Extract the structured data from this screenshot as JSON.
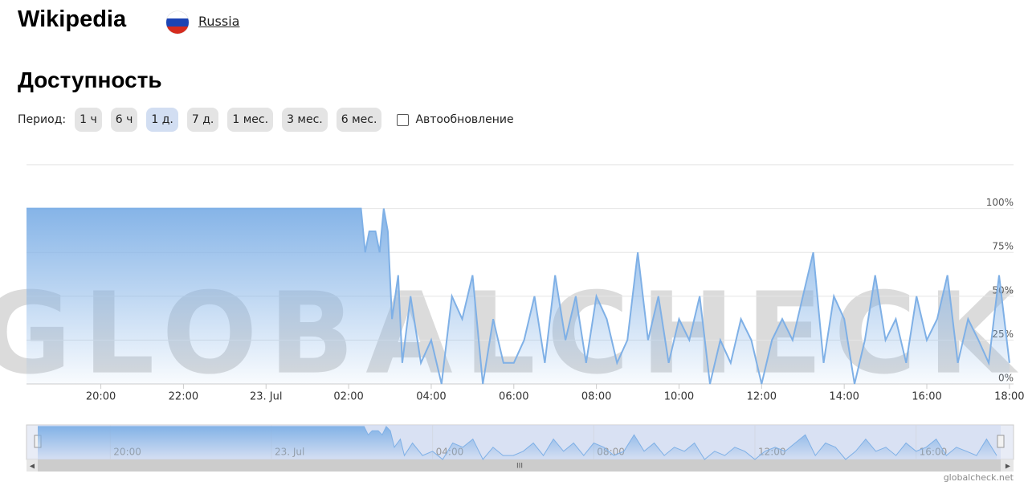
{
  "header": {
    "title": "Wikipedia",
    "country": "Russia"
  },
  "section_title": "Доступность",
  "period": {
    "label": "Период:",
    "options": [
      "1 ч",
      "6 ч",
      "1 д.",
      "7 д.",
      "1 мес.",
      "3 мес.",
      "6 мес."
    ],
    "active": 2
  },
  "auto_update": "Автообновление",
  "watermark": "GLOBALCHECK",
  "credit": "globalcheck.net",
  "chart_data": {
    "type": "area",
    "color": "#7fb0e6",
    "x": [
      18.2,
      26.3,
      26.4,
      26.5,
      26.65,
      26.75,
      26.85,
      26.95,
      27.05,
      27.2,
      27.3,
      27.5,
      27.75,
      28,
      28.25,
      28.5,
      28.75,
      29,
      29.25,
      29.5,
      29.75,
      30,
      30.25,
      30.5,
      30.75,
      31,
      31.25,
      31.5,
      31.75,
      32,
      32.25,
      32.5,
      32.75,
      33,
      33.25,
      33.5,
      33.75,
      34,
      34.25,
      34.5,
      34.75,
      35,
      35.25,
      35.5,
      35.75,
      36,
      36.25,
      36.5,
      36.75,
      37,
      37.25,
      37.5,
      37.75,
      38,
      38.25,
      38.5,
      38.75,
      39,
      39.25,
      39.5,
      39.75,
      40,
      40.25,
      40.5,
      40.75,
      41,
      41.25,
      41.5,
      41.75,
      42
    ],
    "values": [
      100,
      100,
      75,
      87,
      87,
      75,
      100,
      87,
      37,
      62,
      12,
      50,
      12,
      25,
      0,
      50,
      37,
      62,
      0,
      37,
      12,
      12,
      25,
      50,
      12,
      62,
      25,
      50,
      12,
      50,
      37,
      12,
      25,
      75,
      25,
      50,
      12,
      37,
      25,
      50,
      0,
      25,
      12,
      37,
      25,
      0,
      25,
      37,
      25,
      50,
      75,
      12,
      50,
      37,
      0,
      25,
      62,
      25,
      37,
      12,
      50,
      25,
      37,
      62,
      12,
      37,
      25,
      12,
      62,
      12
    ],
    "xlim": [
      18.2,
      42.1
    ],
    "xticks": [
      {
        "value": 20,
        "label": "20:00"
      },
      {
        "value": 22,
        "label": "22:00"
      },
      {
        "value": 24,
        "label": "23. Jul"
      },
      {
        "value": 26,
        "label": "02:00"
      },
      {
        "value": 28,
        "label": "04:00"
      },
      {
        "value": 30,
        "label": "06:00"
      },
      {
        "value": 32,
        "label": "08:00"
      },
      {
        "value": 34,
        "label": "10:00"
      },
      {
        "value": 36,
        "label": "12:00"
      },
      {
        "value": 38,
        "label": "14:00"
      },
      {
        "value": 40,
        "label": "16:00"
      },
      {
        "value": 42,
        "label": "18:00"
      }
    ],
    "ylim": [
      0,
      125
    ],
    "yticks": [
      {
        "value": 0,
        "label": "0%"
      },
      {
        "value": 25,
        "label": "25%"
      },
      {
        "value": 50,
        "label": "50%"
      },
      {
        "value": 75,
        "label": "75%"
      },
      {
        "value": 100,
        "label": "100%"
      }
    ],
    "grid": true
  }
}
